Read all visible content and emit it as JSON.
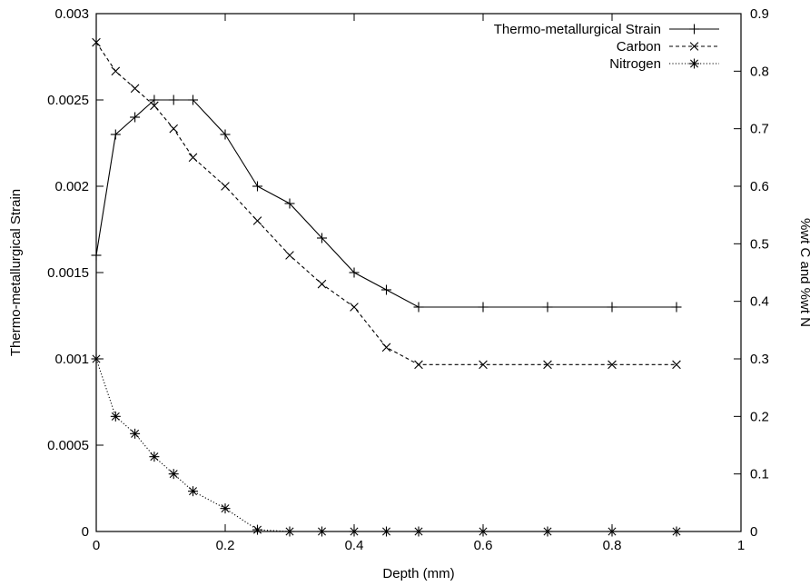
{
  "chart_data": {
    "type": "line",
    "title": "",
    "xlabel": "Depth (mm)",
    "ylabel_left": "Thermo-metallurgical Strain",
    "ylabel_right": "%wt C and %wt N",
    "xlim": [
      0,
      1
    ],
    "ylim_left": [
      0,
      0.003
    ],
    "ylim_right": [
      0,
      0.9
    ],
    "x_ticks": [
      "0",
      "0.2",
      "0.4",
      "0.6",
      "0.8",
      "1"
    ],
    "y_left_ticks": [
      "0",
      "0.0005",
      "0.001",
      "0.0015",
      "0.002",
      "0.0025",
      "0.003"
    ],
    "y_right_ticks": [
      "0",
      "0.1",
      "0.2",
      "0.3",
      "0.4",
      "0.5",
      "0.6",
      "0.7",
      "0.8",
      "0.9"
    ],
    "grid": false,
    "legend_position": "top-right",
    "series": [
      {
        "name": "Thermo-metallurgical Strain",
        "axis": "left",
        "marker": "plus",
        "line": "solid",
        "x": [
          0,
          0.03,
          0.06,
          0.09,
          0.12,
          0.15,
          0.2,
          0.25,
          0.3,
          0.35,
          0.4,
          0.45,
          0.5,
          0.6,
          0.7,
          0.8,
          0.9
        ],
        "y": [
          0.0016,
          0.0023,
          0.0024,
          0.0025,
          0.0025,
          0.0025,
          0.0023,
          0.002,
          0.0019,
          0.0017,
          0.0015,
          0.0014,
          0.0013,
          0.0013,
          0.0013,
          0.0013,
          0.0013
        ]
      },
      {
        "name": "Carbon",
        "axis": "right",
        "marker": "cross",
        "line": "dashed",
        "x": [
          0,
          0.03,
          0.06,
          0.09,
          0.12,
          0.15,
          0.2,
          0.25,
          0.3,
          0.35,
          0.4,
          0.45,
          0.5,
          0.6,
          0.7,
          0.8,
          0.9
        ],
        "y": [
          0.85,
          0.8,
          0.77,
          0.74,
          0.7,
          0.65,
          0.6,
          0.54,
          0.48,
          0.43,
          0.39,
          0.32,
          0.29,
          0.29,
          0.29,
          0.29,
          0.29
        ]
      },
      {
        "name": "Nitrogen",
        "axis": "right",
        "marker": "star",
        "line": "dotted",
        "x": [
          0,
          0.03,
          0.06,
          0.09,
          0.12,
          0.15,
          0.2,
          0.25,
          0.3,
          0.35,
          0.4,
          0.45,
          0.5,
          0.6,
          0.7,
          0.8,
          0.9
        ],
        "y": [
          0.3,
          0.2,
          0.17,
          0.13,
          0.1,
          0.07,
          0.04,
          0.003,
          0,
          0,
          0,
          0,
          0,
          0,
          0,
          0,
          0
        ]
      }
    ]
  }
}
